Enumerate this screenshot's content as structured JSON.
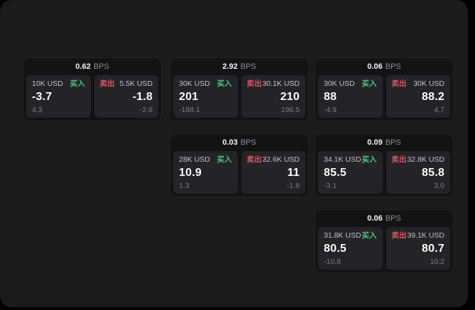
{
  "window": {
    "background": "#1b1b1c",
    "page_background": "#000000"
  },
  "colors": {
    "card_bg": "#131314",
    "tile_bg": "#242426",
    "buy_green": "#4ac57f",
    "sell_red": "#dd5263",
    "text_primary": "#fafafa",
    "text_secondary": "#c3c3c6",
    "text_muted": "#7e7e82",
    "bps_unit_gray": "#8e8e93"
  },
  "labels": {
    "bps_unit": "BPS",
    "buy": "买入",
    "sell": "卖出"
  },
  "cards": [
    {
      "col": 1,
      "row": 1,
      "spread_bps": "0.62",
      "buy": {
        "size": "10K USD",
        "value": "-3.7",
        "sub": "4.3"
      },
      "sell": {
        "size": "5.5K USD",
        "value": "-1.8",
        "sub": "-2.6"
      }
    },
    {
      "col": 2,
      "row": 1,
      "spread_bps": "2.92",
      "buy": {
        "size": "30K USD",
        "value": "201",
        "sub": "-188.1"
      },
      "sell": {
        "size": "30.1K USD",
        "value": "210",
        "sub": "196.5"
      }
    },
    {
      "col": 3,
      "row": 1,
      "spread_bps": "0.06",
      "buy": {
        "size": "30K USD",
        "value": "88",
        "sub": "-4.9"
      },
      "sell": {
        "size": "30K USD",
        "value": "88.2",
        "sub": "4.7"
      }
    },
    {
      "col": 2,
      "row": 2,
      "spread_bps": "0.03",
      "buy": {
        "size": "28K USD",
        "value": "10.9",
        "sub": "1.3"
      },
      "sell": {
        "size": "32.6K USD",
        "value": "11",
        "sub": "-1.8"
      }
    },
    {
      "col": 3,
      "row": 2,
      "spread_bps": "0.09",
      "buy": {
        "size": "34.1K USD",
        "value": "85.5",
        "sub": "-3.1"
      },
      "sell": {
        "size": "32.8K USD",
        "value": "85.8",
        "sub": "3.0"
      }
    },
    {
      "col": 3,
      "row": 3,
      "spread_bps": "0.06",
      "buy": {
        "size": "31.8K USD",
        "value": "80.5",
        "sub": "-10.8"
      },
      "sell": {
        "size": "39.1K USD",
        "value": "80.7",
        "sub": "10.2"
      }
    }
  ]
}
